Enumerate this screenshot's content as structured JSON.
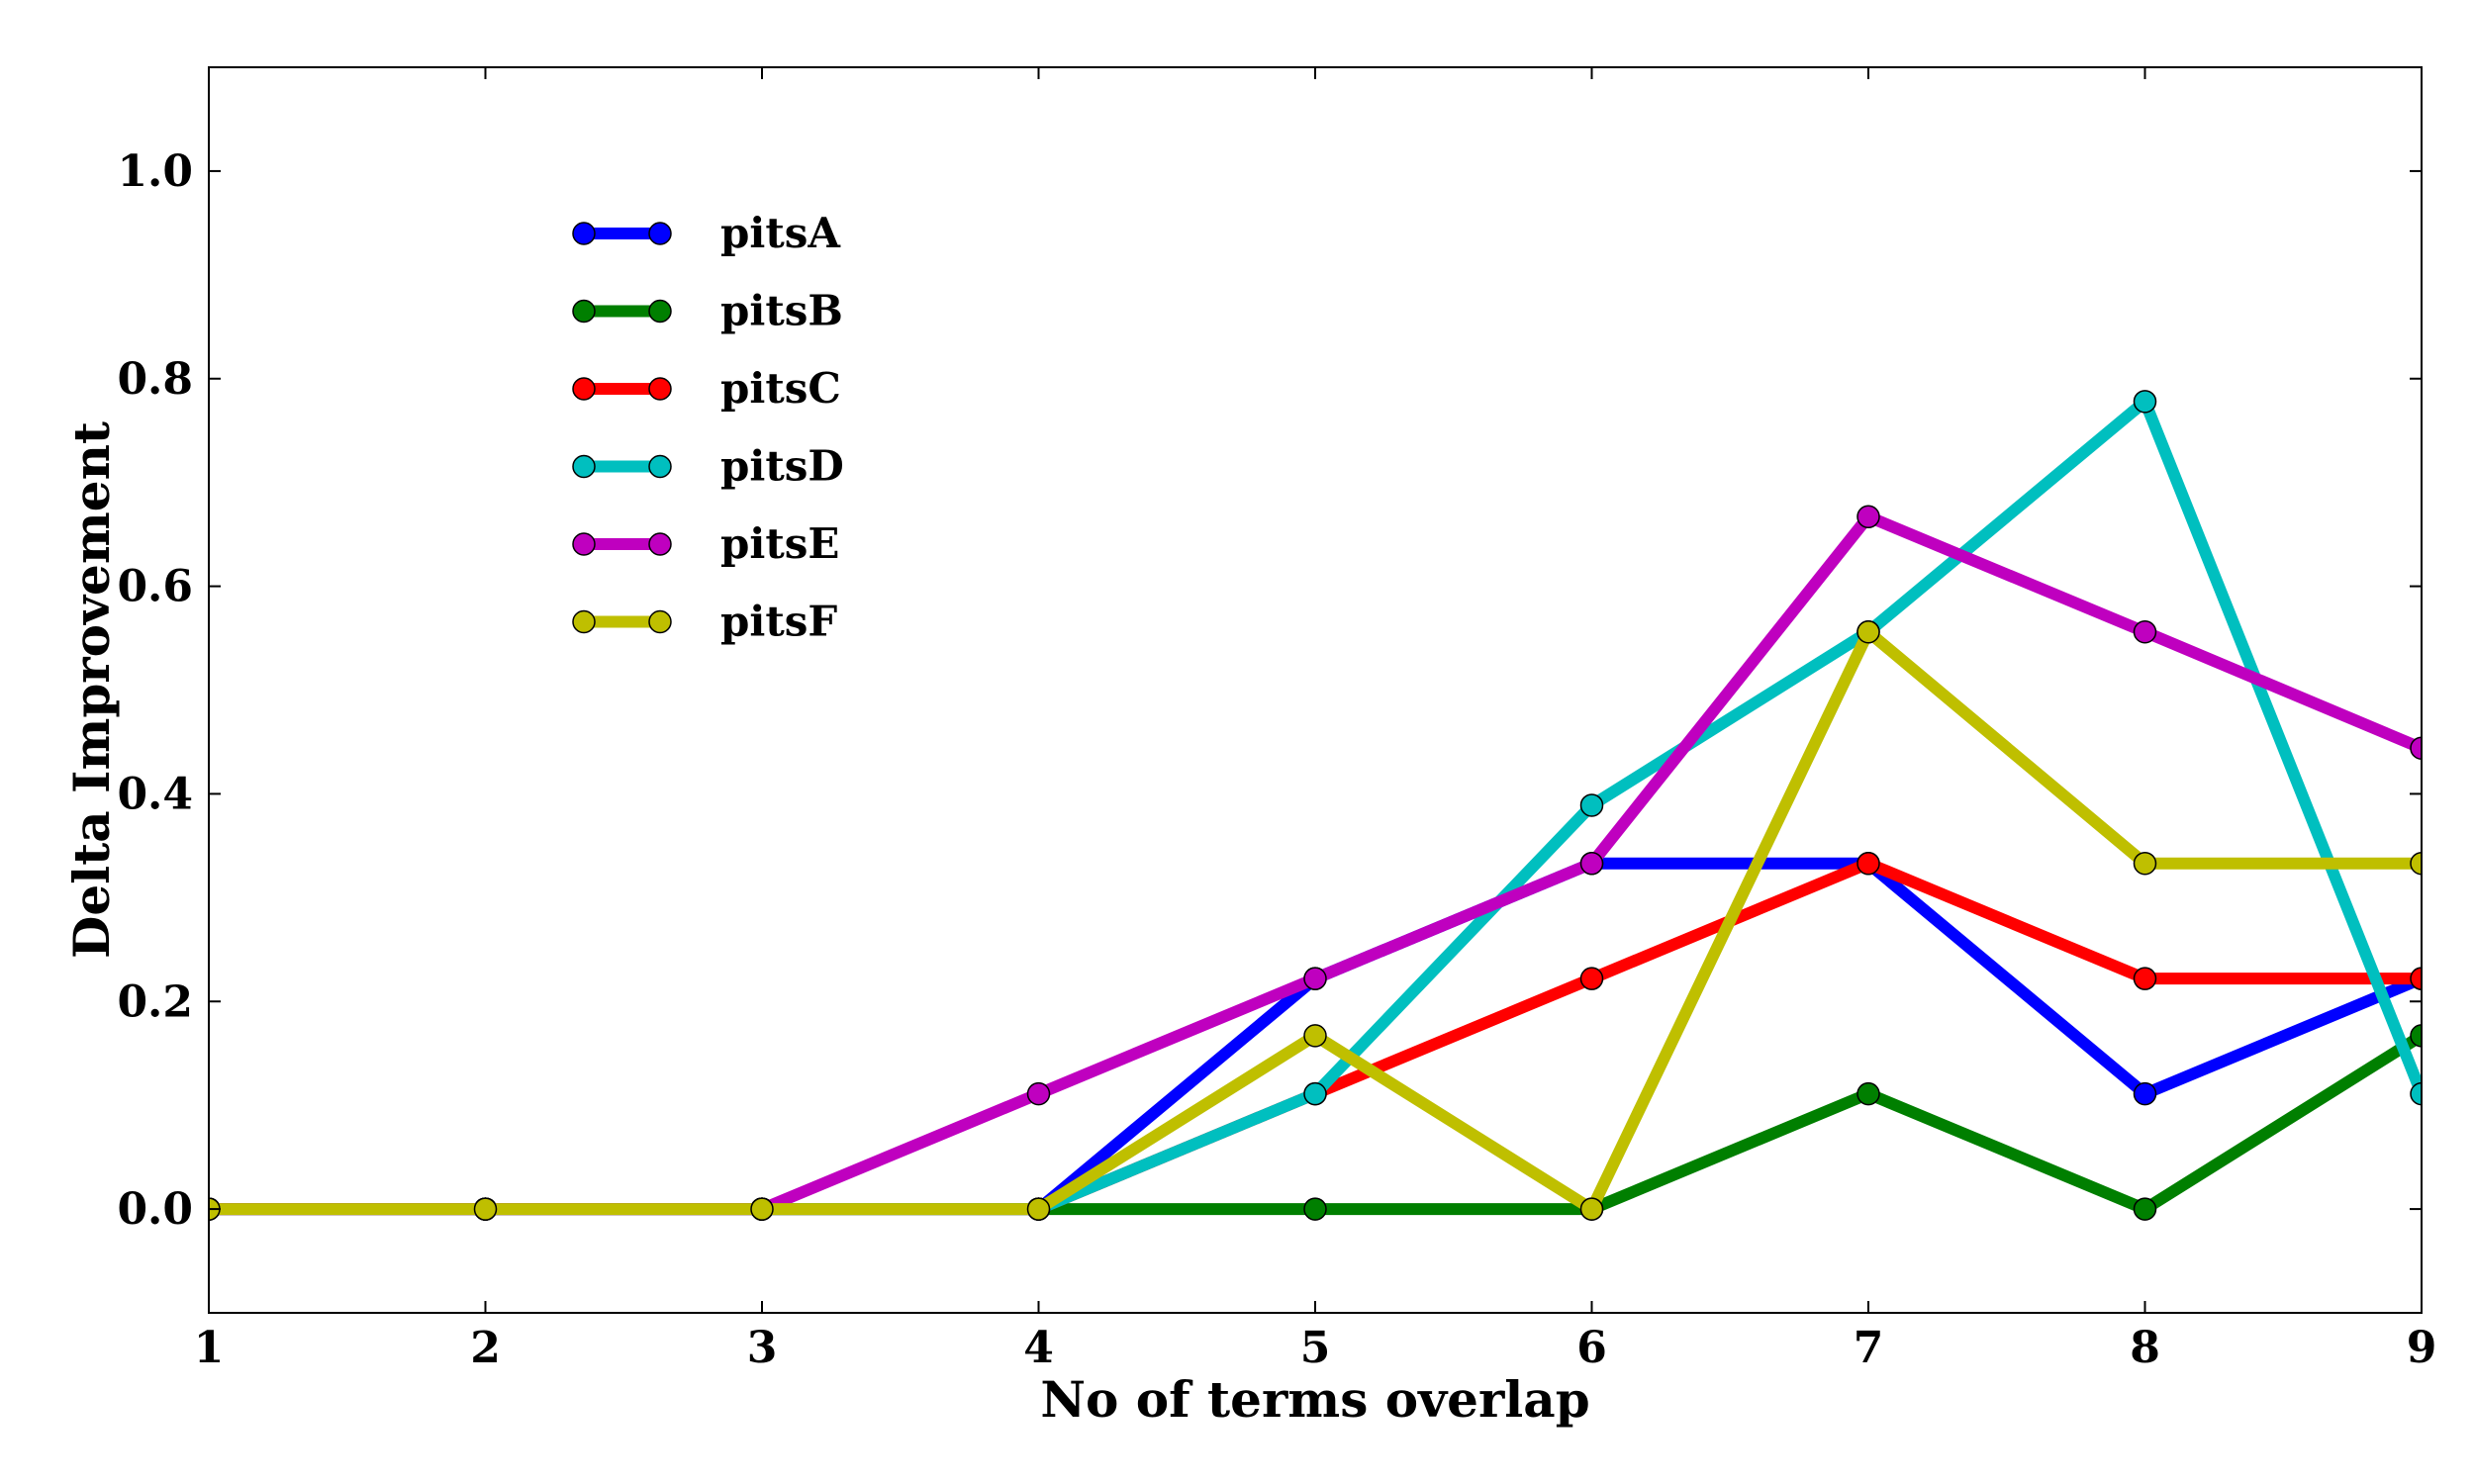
{
  "chart_data": {
    "type": "line",
    "xlabel": "No of terms overlap",
    "ylabel": "Delta Improvement",
    "x": [
      1,
      2,
      3,
      4,
      5,
      6,
      7,
      8,
      9
    ],
    "xlim": [
      1,
      9
    ],
    "ylim": [
      -0.1,
      1.1
    ],
    "xticks": [
      "1",
      "2",
      "3",
      "4",
      "5",
      "6",
      "7",
      "8",
      "9"
    ],
    "yticks": [
      "0.0",
      "0.2",
      "0.4",
      "0.6",
      "0.8",
      "1.0"
    ],
    "grid": false,
    "legend_position": "upper-left",
    "series": [
      {
        "name": "pitsA",
        "color": "#0000ff",
        "values": [
          0,
          0,
          0,
          0,
          0.222,
          0.333,
          0.333,
          0.111,
          0.222
        ]
      },
      {
        "name": "pitsB",
        "color": "#007f00",
        "values": [
          0,
          0,
          0,
          0,
          0,
          0,
          0.111,
          0,
          0.167
        ]
      },
      {
        "name": "pitsC",
        "color": "#ff0000",
        "values": [
          0,
          0,
          0,
          0,
          0.111,
          0.222,
          0.333,
          0.222,
          0.222
        ]
      },
      {
        "name": "pitsD",
        "color": "#00bfbf",
        "values": [
          0,
          0,
          0,
          0,
          0.111,
          0.389,
          0.556,
          0.778,
          0.111
        ]
      },
      {
        "name": "pitsE",
        "color": "#bf00bf",
        "values": [
          0,
          0,
          0,
          0.111,
          0.222,
          0.333,
          0.667,
          0.556,
          0.444
        ]
      },
      {
        "name": "pitsF",
        "color": "#bfbf00",
        "values": [
          0,
          0,
          0,
          0,
          0.167,
          0,
          0.556,
          0.333,
          0.333
        ]
      }
    ]
  }
}
